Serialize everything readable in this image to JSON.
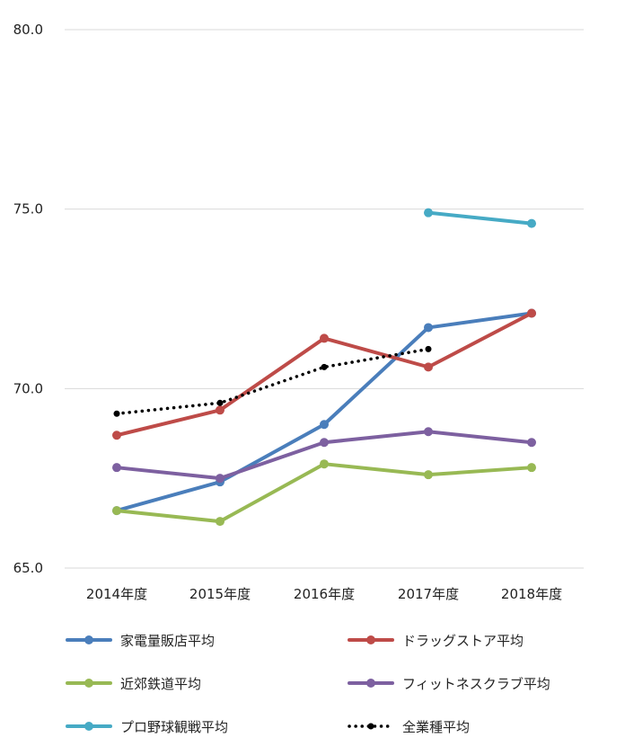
{
  "chart_data": {
    "type": "line",
    "title": "",
    "xlabel": "",
    "ylabel": "",
    "categories": [
      "2014年度",
      "2015年度",
      "2016年度",
      "2017年度",
      "2018年度"
    ],
    "ylim": [
      65.0,
      80.0
    ],
    "yticks": [
      "80.0",
      "75.0",
      "70.0",
      "65.0"
    ],
    "grid": true,
    "legend_position": "bottom",
    "series": [
      {
        "name": "家電量販店平均",
        "color": "#4a7ebb",
        "style": "solid",
        "values": [
          66.6,
          67.4,
          69.0,
          71.7,
          72.1
        ]
      },
      {
        "name": "ドラッグストア平均",
        "color": "#be4b48",
        "style": "solid",
        "values": [
          68.7,
          69.4,
          71.4,
          70.6,
          72.1
        ]
      },
      {
        "name": "近郊鉄道平均",
        "color": "#98b954",
        "style": "solid",
        "values": [
          66.6,
          66.3,
          67.9,
          67.6,
          67.8
        ]
      },
      {
        "name": "フィットネスクラブ平均",
        "color": "#7d60a0",
        "style": "solid",
        "values": [
          67.8,
          67.5,
          68.5,
          68.8,
          68.5
        ]
      },
      {
        "name": "プロ野球観戦平均",
        "color": "#46aac5",
        "style": "solid",
        "values": [
          null,
          null,
          null,
          74.9,
          74.6
        ]
      },
      {
        "name": "全業種平均",
        "color": "#000000",
        "style": "dotted",
        "values": [
          69.3,
          69.6,
          70.6,
          71.1,
          null
        ]
      }
    ]
  }
}
